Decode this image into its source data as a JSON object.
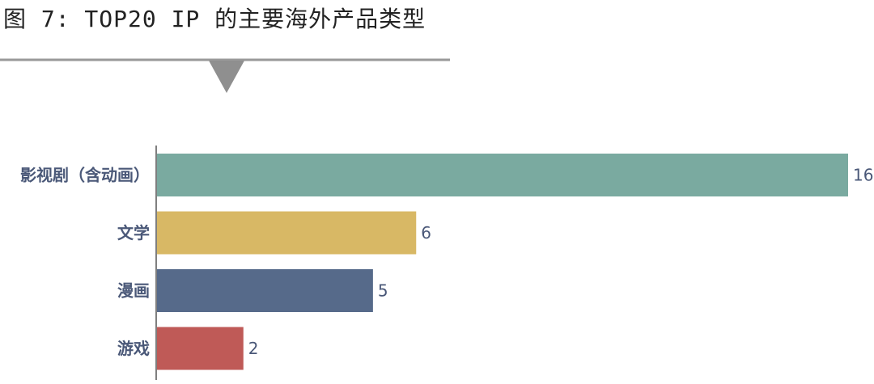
{
  "header": {
    "title": "图 7: TOP20 IP 的主要海外产品类型"
  },
  "chart_data": {
    "type": "bar",
    "orientation": "horizontal",
    "title": "",
    "xlabel": "",
    "ylabel": "",
    "categories": [
      "影视剧（含动画）",
      "文学",
      "漫画",
      "游戏"
    ],
    "values": [
      16,
      6,
      5,
      2
    ],
    "data_labels": [
      "16",
      "6",
      "5",
      "2"
    ],
    "colors": [
      "#7aaaa0",
      "#d8b865",
      "#566a8a",
      "#bf5a57"
    ],
    "xlim": [
      0,
      16
    ],
    "grid": false,
    "legend": "none",
    "divider_color": "#999999",
    "label_color": "#4a5878"
  }
}
